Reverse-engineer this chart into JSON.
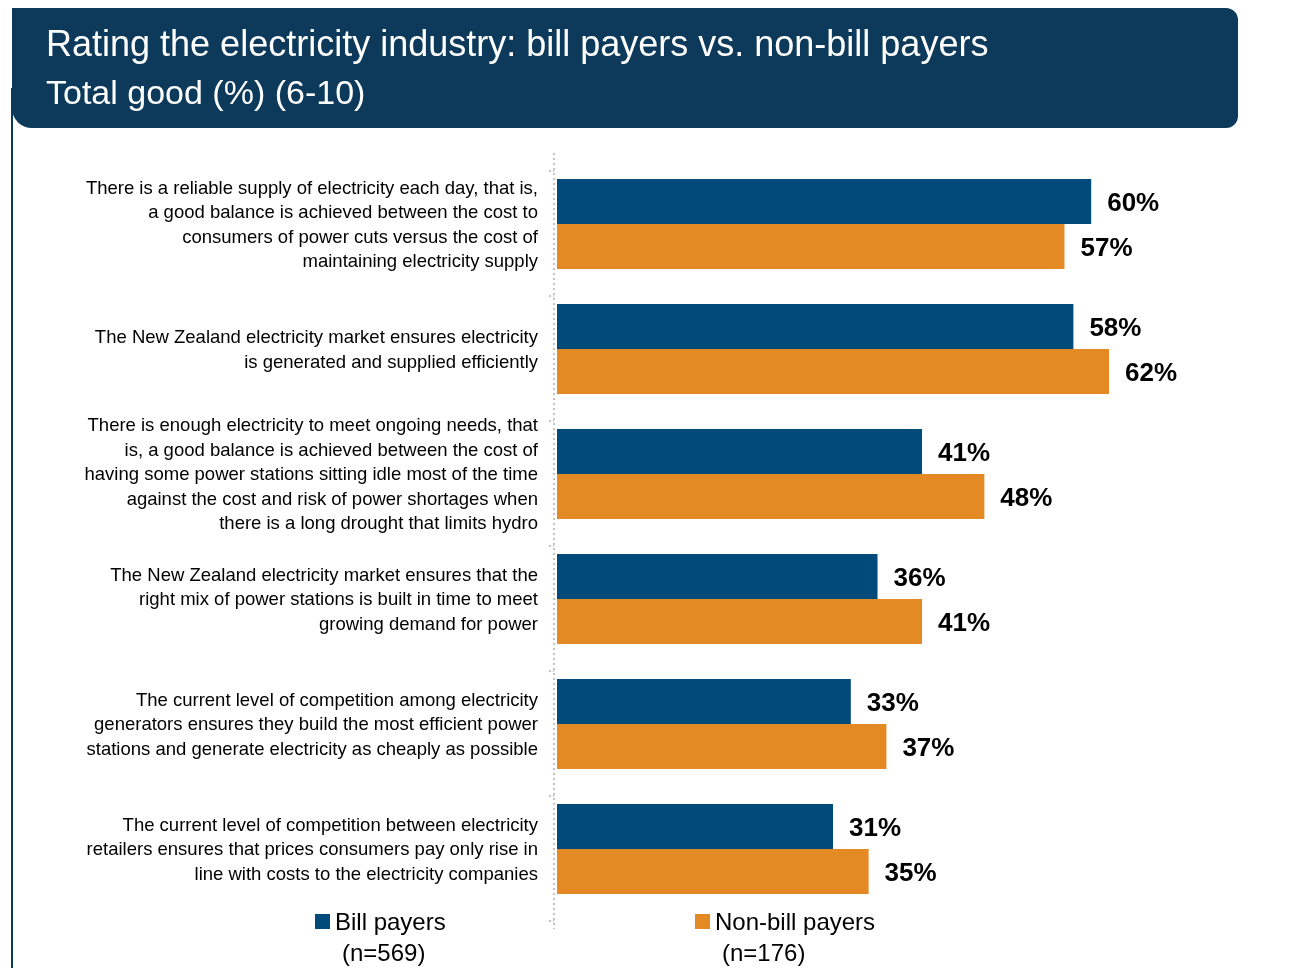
{
  "chart_data": {
    "type": "bar",
    "orientation": "horizontal",
    "title": "Rating the electricity industry: bill payers vs. non-bill payers",
    "subtitle": "Total good (%) (6-10)",
    "categories": [
      "There is a reliable supply of electricity each day, that is,\na good balance is achieved between the cost to\nconsumers of power cuts versus the cost of\nmaintaining electricity supply",
      "The New Zealand electricity market ensures electricity\nis generated and supplied efficiently",
      "There is enough electricity to meet ongoing needs, that\nis, a good balance is achieved between the cost of\nhaving some power stations sitting idle most of the time\nagainst the cost and risk of power shortages when\nthere is a long drought that limits hydro",
      "The New Zealand electricity market ensures that the\nright mix of power stations is built in time to meet\ngrowing demand for power",
      "The current level of competition among electricity\ngenerators ensures they build the most efficient power\nstations and generate electricity as cheaply as possible",
      "The current level of competition between electricity\nretailers ensures that prices consumers pay only rise in\nline with costs to the electricity companies"
    ],
    "series": [
      {
        "name": "Bill payers (n=569)",
        "color": "#004b7a",
        "values": [
          60,
          58,
          41,
          36,
          33,
          31
        ],
        "value_labels": [
          "60%",
          "58%",
          "41%",
          "36%",
          "33%",
          "31%"
        ]
      },
      {
        "name": "Non-bill payers (n=176)",
        "color": "#e38a25",
        "values": [
          57,
          62,
          48,
          41,
          37,
          35
        ],
        "value_labels": [
          "57%",
          "62%",
          "48%",
          "41%",
          "37%",
          "35%"
        ]
      }
    ],
    "legend": "bottom"
  }
}
